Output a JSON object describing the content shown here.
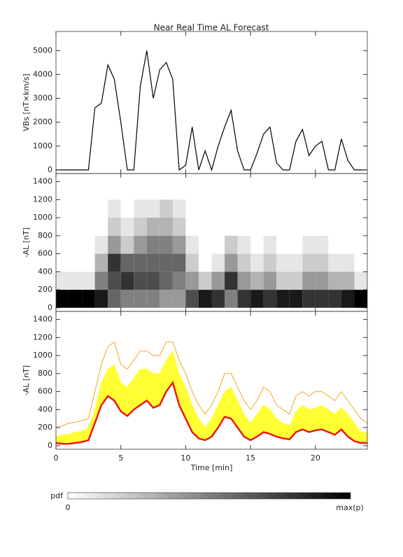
{
  "title": "Near Real Time AL Forecast",
  "chart_data": [
    {
      "type": "line",
      "y_label": "VBs [nT×km/s]",
      "x": [
        0,
        0.5,
        1,
        1.5,
        2,
        2.5,
        3,
        3.5,
        4,
        4.5,
        5,
        5.5,
        6,
        6.5,
        7,
        7.5,
        8,
        8.5,
        9,
        9.5,
        10,
        10.5,
        11,
        11.5,
        12,
        12.5,
        13,
        13.5,
        14,
        14.5,
        15,
        15.5,
        16,
        16.5,
        17,
        17.5,
        18,
        18.5,
        19,
        19.5,
        20,
        20.5,
        21,
        21.5,
        22,
        22.5,
        23,
        23.5,
        24
      ],
      "series": [
        {
          "color": "#000000",
          "values": [
            0,
            0,
            0,
            0,
            0,
            0,
            2600,
            2800,
            4400,
            3800,
            2000,
            0,
            0,
            3500,
            5000,
            3000,
            4200,
            4500,
            3800,
            0,
            200,
            1800,
            0,
            800,
            0,
            1000,
            1800,
            2500,
            800,
            0,
            0,
            700,
            1500,
            1800,
            300,
            0,
            0,
            1200,
            1700,
            600,
            1000,
            1200,
            0,
            0,
            1300,
            400,
            0,
            0,
            0
          ]
        }
      ],
      "xlim": [
        0,
        24
      ],
      "xticks": [
        0,
        5,
        10,
        15,
        20
      ],
      "ylim": [
        -150,
        5800
      ],
      "yticks": [
        0,
        1000,
        2000,
        3000,
        4000,
        5000
      ]
    },
    {
      "type": "heatmap",
      "y_label": "-AL [nT]",
      "x_bins": [
        0,
        1,
        2,
        3,
        4,
        5,
        6,
        7,
        8,
        9,
        10,
        11,
        12,
        13,
        14,
        15,
        16,
        17,
        18,
        19,
        20,
        21,
        22,
        23,
        24
      ],
      "y_bins": [
        0,
        200,
        400,
        600,
        800,
        1000,
        1200
      ],
      "z": [
        [
          1,
          1,
          1,
          0.9,
          0.6,
          0.5,
          0.5,
          0.5,
          0.4,
          0.4,
          0.7,
          0.9,
          0.8,
          0.5,
          0.8,
          0.9,
          0.8,
          0.9,
          0.9,
          0.8,
          0.8,
          0.8,
          0.9,
          1
        ],
        [
          0.1,
          0.1,
          0.1,
          0.5,
          0.7,
          0.8,
          0.7,
          0.7,
          0.6,
          0.5,
          0.4,
          0.2,
          0.4,
          0.8,
          0.4,
          0.3,
          0.4,
          0.2,
          0.2,
          0.4,
          0.4,
          0.3,
          0.3,
          0.1
        ],
        [
          0,
          0,
          0,
          0.3,
          0.8,
          0.6,
          0.6,
          0.6,
          0.6,
          0.6,
          0.2,
          0,
          0.1,
          0.4,
          0.2,
          0.1,
          0.2,
          0.1,
          0.1,
          0.2,
          0.2,
          0.1,
          0.1,
          0
        ],
        [
          0,
          0,
          0,
          0.1,
          0.4,
          0.2,
          0.4,
          0.5,
          0.5,
          0.4,
          0.1,
          0,
          0,
          0.2,
          0.1,
          0,
          0.1,
          0,
          0,
          0.1,
          0.1,
          0,
          0,
          0
        ],
        [
          0,
          0,
          0,
          0,
          0.2,
          0.1,
          0.2,
          0.3,
          0.3,
          0.2,
          0,
          0,
          0,
          0,
          0,
          0,
          0,
          0,
          0,
          0,
          0,
          0,
          0,
          0
        ],
        [
          0,
          0,
          0,
          0,
          0.1,
          0,
          0.1,
          0.1,
          0.2,
          0.1,
          0,
          0,
          0,
          0,
          0,
          0,
          0,
          0,
          0,
          0,
          0,
          0,
          0,
          0
        ]
      ],
      "xlim": [
        0,
        24
      ],
      "xticks": [
        0,
        5,
        10,
        15,
        20
      ],
      "ylim": [
        -40,
        1490
      ],
      "yticks": [
        0,
        200,
        400,
        600,
        800,
        1000,
        1200,
        1400
      ]
    },
    {
      "type": "band",
      "y_label": "-AL [nT]",
      "x_label": "Time [min]",
      "x": [
        0,
        0.5,
        1,
        1.5,
        2,
        2.5,
        3,
        3.5,
        4,
        4.5,
        5,
        5.5,
        6,
        6.5,
        7,
        7.5,
        8,
        8.5,
        9,
        9.5,
        10,
        10.5,
        11,
        11.5,
        12,
        12.5,
        13,
        13.5,
        14,
        14.5,
        15,
        15.5,
        16,
        16.5,
        17,
        17.5,
        18,
        18.5,
        19,
        19.5,
        20,
        20.5,
        21,
        21.5,
        22,
        22.5,
        23,
        23.5,
        24
      ],
      "series": [
        {
          "color": "#f5a623",
          "values": [
            200,
            220,
            250,
            260,
            280,
            300,
            600,
            900,
            1100,
            1150,
            900,
            850,
            950,
            1050,
            1050,
            1000,
            1000,
            1150,
            1150,
            950,
            800,
            600,
            450,
            350,
            450,
            600,
            800,
            800,
            650,
            500,
            400,
            500,
            650,
            600,
            450,
            400,
            350,
            550,
            600,
            550,
            600,
            600,
            550,
            500,
            600,
            500,
            400,
            300,
            250
          ]
        },
        {
          "color": "#ffff33",
          "fill_to": 2,
          "values": [
            100,
            120,
            130,
            150,
            160,
            200,
            400,
            700,
            850,
            900,
            700,
            650,
            750,
            850,
            850,
            800,
            800,
            950,
            1050,
            800,
            650,
            450,
            300,
            200,
            300,
            450,
            600,
            650,
            500,
            350,
            250,
            350,
            450,
            400,
            300,
            250,
            220,
            380,
            450,
            400,
            420,
            450,
            400,
            350,
            420,
            350,
            250,
            150,
            150
          ]
        },
        {
          "color": "#ee1111",
          "values": [
            30,
            20,
            20,
            30,
            40,
            60,
            250,
            450,
            550,
            500,
            380,
            330,
            400,
            450,
            500,
            420,
            450,
            600,
            700,
            450,
            300,
            150,
            80,
            60,
            100,
            200,
            320,
            300,
            200,
            100,
            60,
            100,
            150,
            130,
            100,
            80,
            70,
            150,
            180,
            150,
            170,
            180,
            150,
            120,
            180,
            100,
            50,
            30,
            30
          ]
        }
      ],
      "xlim": [
        0,
        24
      ],
      "xticks": [
        0,
        5,
        10,
        15,
        20
      ],
      "ylim": [
        -40,
        1490
      ],
      "yticks": [
        0,
        200,
        400,
        600,
        800,
        1000,
        1200,
        1400
      ]
    }
  ],
  "colorbar": {
    "label": "pdf",
    "min_label": "0",
    "max_label": "max(p)"
  }
}
